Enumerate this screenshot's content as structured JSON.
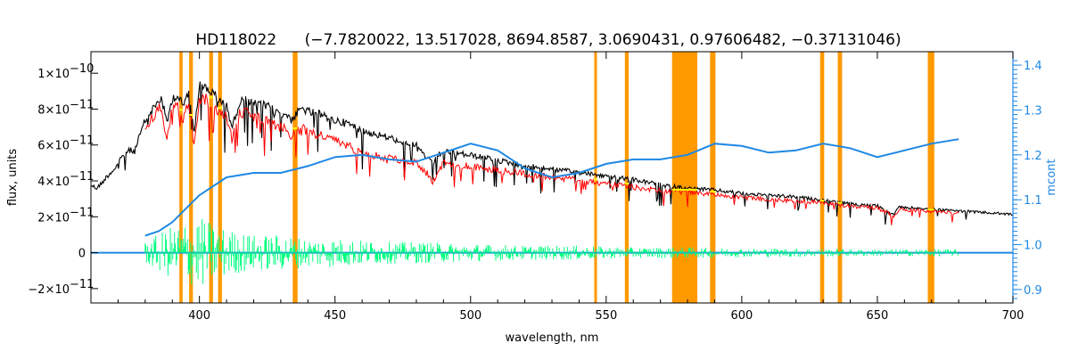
{
  "chart_data": {
    "type": "line",
    "title_object": "HD118022",
    "title_params": "(−7.7820022, 13.517028, 8694.8587, 3.0690431, 0.97606482, −0.37131046)",
    "xlabel": "wavelength, nm",
    "ylabel": "flux, units",
    "y2label": "mcont",
    "xlim": [
      360,
      700
    ],
    "ylim": [
      -2.8e-11,
      1.12e-10
    ],
    "y2lim": [
      0.87,
      1.43
    ],
    "grid": false,
    "x_ticks": [
      "400",
      "450",
      "500",
      "550",
      "600",
      "650",
      "700"
    ],
    "y_ticks": [
      {
        "value": -2e-11,
        "mant": "−2×10",
        "exp": "−11"
      },
      {
        "value": 0,
        "mant": "0",
        "exp": ""
      },
      {
        "value": 2e-11,
        "mant": "2×10",
        "exp": "−11"
      },
      {
        "value": 4e-11,
        "mant": "4×10",
        "exp": "−11"
      },
      {
        "value": 6e-11,
        "mant": "6×10",
        "exp": "−11"
      },
      {
        "value": 8e-11,
        "mant": "8×10",
        "exp": "−11"
      },
      {
        "value": 1e-10,
        "mant": "1×10",
        "exp": "−10"
      }
    ],
    "y2_ticks": [
      "0.9",
      "1.0",
      "1.1",
      "1.2",
      "1.3",
      "1.4"
    ],
    "colors": {
      "observed": "#000000",
      "model": "#ff0000",
      "residual": "#00ff7f",
      "mcont": "#1e88e5",
      "mask": "#ff9900",
      "highlight": "#ffff00",
      "axis": "#000000",
      "right_axis": "#1e88e5"
    },
    "masked_regions": [
      [
        392.6,
        393.8
      ],
      [
        396.2,
        397.6
      ],
      [
        403.6,
        405.0
      ],
      [
        406.9,
        408.3
      ],
      [
        434.4,
        436.2
      ],
      [
        545.6,
        546.6
      ],
      [
        556.9,
        558.3
      ],
      [
        574.3,
        583.6
      ],
      [
        588.3,
        590.3
      ],
      [
        628.9,
        630.4
      ],
      [
        635.4,
        637.0
      ],
      [
        668.6,
        671.0
      ]
    ],
    "series": [
      {
        "role": "observed",
        "x": [
          360,
          362,
          364,
          366,
          368,
          370,
          372,
          374,
          376,
          378,
          380,
          383,
          386,
          388,
          390,
          392,
          394,
          396,
          398,
          400,
          402,
          404,
          406,
          408,
          410,
          412,
          415,
          418,
          420,
          425,
          430,
          433,
          434,
          436,
          438,
          440,
          445,
          450,
          455,
          460,
          470,
          480,
          484,
          486,
          488,
          490,
          500,
          510,
          520,
          530,
          540,
          550,
          560,
          570,
          580,
          590,
          600,
          610,
          620,
          630,
          640,
          650,
          654,
          656,
          658,
          660,
          670,
          680,
          690,
          700
        ],
        "y": [
          3.9e-11,
          3.7e-11,
          4e-11,
          4.4e-11,
          4.7e-11,
          5.1e-11,
          5.6e-11,
          5.9e-11,
          5.8e-11,
          6.7e-11,
          7.6e-11,
          8.3e-11,
          8.9e-11,
          7.4e-11,
          8.9e-11,
          9e-11,
          8.4e-11,
          9.3e-11,
          7e-11,
          9.6e-11,
          9.5e-11,
          9.3e-11,
          9e-11,
          8.6e-11,
          8.5e-11,
          7.2e-11,
          8.7e-11,
          8.8e-11,
          8.6e-11,
          8.4e-11,
          8e-11,
          7.9e-11,
          7.6e-11,
          8e-11,
          8.3e-11,
          8.1e-11,
          7.9e-11,
          7.6e-11,
          7.4e-11,
          7e-11,
          6.6e-11,
          6.2e-11,
          5.4e-11,
          5.1e-11,
          5.6e-11,
          5.8e-11,
          5.6e-11,
          5.3e-11,
          5e-11,
          4.8e-11,
          4.6e-11,
          4.4e-11,
          4.2e-11,
          3.9e-11,
          3.7e-11,
          3.6e-11,
          3.4e-11,
          3.3e-11,
          3.2e-11,
          3e-11,
          2.8e-11,
          2.7e-11,
          2.3e-11,
          2.2e-11,
          2.6e-11,
          2.6e-11,
          2.5e-11,
          2.4e-11,
          2.3e-11,
          2.2e-11
        ]
      },
      {
        "role": "model",
        "x": [
          380,
          383,
          386,
          388,
          390,
          392,
          394,
          396,
          398,
          400,
          402,
          404,
          406,
          408,
          410,
          412,
          415,
          418,
          420,
          425,
          430,
          433,
          434,
          436,
          438,
          440,
          445,
          450,
          455,
          460,
          470,
          480,
          484,
          486,
          488,
          490,
          500,
          510,
          520,
          530,
          540,
          550,
          560,
          570,
          580,
          590,
          600,
          610,
          620,
          630,
          640,
          650,
          654,
          656,
          658,
          660,
          670,
          680
        ],
        "y": [
          7.2e-11,
          7.9e-11,
          8.5e-11,
          6.6e-11,
          8.4e-11,
          8.5e-11,
          7.6e-11,
          8.8e-11,
          6.3e-11,
          9e-11,
          8.9e-11,
          8.7e-11,
          8.4e-11,
          8e-11,
          7.9e-11,
          6.6e-11,
          8.1e-11,
          8.2e-11,
          7.9e-11,
          7.6e-11,
          7.3e-11,
          7.1e-11,
          6.6e-11,
          7.1e-11,
          7.2e-11,
          7e-11,
          6.8e-11,
          6.5e-11,
          6.2e-11,
          5.8e-11,
          5.5e-11,
          5.2e-11,
          4.6e-11,
          4.1e-11,
          4.7e-11,
          5.2e-11,
          5e-11,
          4.8e-11,
          4.6e-11,
          4.4e-11,
          4.2e-11,
          4e-11,
          3.8e-11,
          3.6e-11,
          3.5e-11,
          3.4e-11,
          3.2e-11,
          3.1e-11,
          3e-11,
          2.9e-11,
          2.7e-11,
          2.6e-11,
          2.3e-11,
          2.1e-11,
          2.5e-11,
          2.5e-11,
          2.4e-11,
          2.3e-11
        ]
      },
      {
        "role": "mcont",
        "x": [
          380,
          385,
          390,
          395,
          400,
          410,
          420,
          430,
          440,
          450,
          460,
          470,
          480,
          490,
          500,
          510,
          520,
          530,
          540,
          550,
          560,
          570,
          580,
          590,
          600,
          610,
          620,
          630,
          640,
          650,
          660,
          670,
          680
        ],
        "y": [
          1.02,
          1.03,
          1.05,
          1.08,
          1.11,
          1.15,
          1.16,
          1.16,
          1.175,
          1.195,
          1.2,
          1.19,
          1.185,
          1.205,
          1.225,
          1.21,
          1.17,
          1.15,
          1.16,
          1.18,
          1.19,
          1.19,
          1.2,
          1.225,
          1.22,
          1.205,
          1.21,
          1.225,
          1.215,
          1.195,
          1.21,
          1.225,
          1.235
        ]
      },
      {
        "role": "residual",
        "x": [
          380,
          390,
          400,
          410,
          420,
          430,
          440,
          450,
          460,
          470,
          480,
          500,
          520,
          540,
          560,
          580,
          600,
          620,
          640,
          660,
          680
        ],
        "y_amplitude": [
          6e-12,
          1.5e-11,
          2e-11,
          1.3e-11,
          1e-11,
          1e-11,
          8e-12,
          8e-12,
          7e-12,
          6e-12,
          6e-12,
          5e-12,
          4e-12,
          4e-12,
          3e-12,
          3e-12,
          2.5e-12,
          2.5e-12,
          2e-12,
          2e-12,
          2e-12
        ]
      }
    ]
  }
}
